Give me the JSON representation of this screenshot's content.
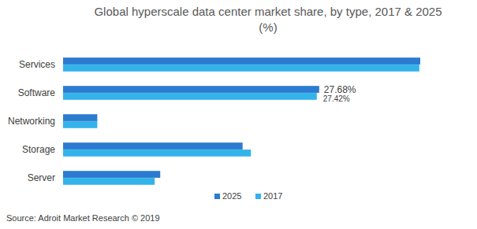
{
  "chart_data": {
    "type": "bar",
    "orientation": "horizontal",
    "title": "Global hyperscale data center market share, by type, 2017 & 2025",
    "subtitle": "(%)",
    "source": "Source: Adroit Market Research © 2019",
    "categories": [
      "Services",
      "Software",
      "Networking",
      "Storage",
      "Server"
    ],
    "series": [
      {
        "name": "2025",
        "color": "#2b7bd0",
        "values": [
          38.6,
          27.68,
          3.7,
          19.4,
          10.5
        ],
        "value_labels": [
          null,
          "27.68%",
          null,
          null,
          null
        ]
      },
      {
        "name": "2017",
        "color": "#33b3ea",
        "values": [
          38.5,
          27.42,
          3.7,
          20.3,
          9.9
        ],
        "value_labels": [
          null,
          "27.42%",
          null,
          null,
          null
        ]
      }
    ],
    "data_labels": true,
    "tick_labels": "y",
    "grid": false,
    "legend": "bottom"
  }
}
